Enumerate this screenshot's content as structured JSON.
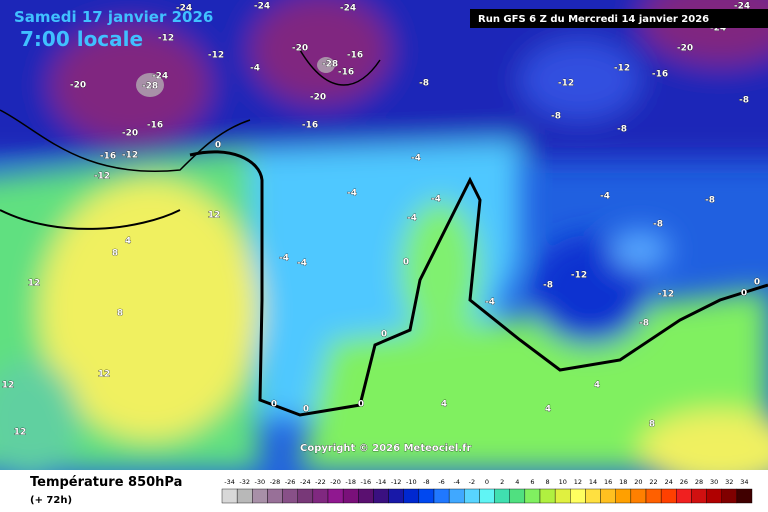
{
  "header": {
    "date": "Samedi 17 janvier 2026",
    "time": "7:00 locale",
    "run": "Run GFS 6 Z du Mercredi 14 janvier 2026"
  },
  "copyright": "Copyright © 2026 Meteociel.fr",
  "footer": {
    "title": "Température 850hPa",
    "lead": "(+ 72h)"
  },
  "scale": {
    "ticks": [
      -34,
      -32,
      -30,
      -28,
      -26,
      -24,
      -22,
      -20,
      -18,
      -16,
      -14,
      -12,
      -10,
      -8,
      -6,
      -4,
      -2,
      0,
      2,
      4,
      6,
      8,
      10,
      12,
      14,
      16,
      18,
      20,
      22,
      24,
      26,
      28,
      30,
      32,
      34
    ],
    "colors": [
      "#d8d8d8",
      "#b8b8b8",
      "#a890a8",
      "#987098",
      "#885088",
      "#783878",
      "#802880",
      "#901890",
      "#7a107a",
      "#5a1070",
      "#3a1080",
      "#1818a8",
      "#0028d0",
      "#0048f0",
      "#2078ff",
      "#40a8ff",
      "#58d4ff",
      "#60f4f4",
      "#40e0b0",
      "#50e080",
      "#80f060",
      "#b0f040",
      "#e0f040",
      "#ffff60",
      "#ffe040",
      "#ffc020",
      "#ffa000",
      "#ff8000",
      "#ff6000",
      "#ff4000",
      "#f02020",
      "#d01010",
      "#b00000",
      "#800000",
      "#400000"
    ]
  },
  "contour_labels": [
    -24,
    -24,
    -24,
    -24,
    -12,
    -20,
    -16,
    -28,
    -16,
    -24,
    -20,
    -28,
    -16,
    -20,
    -16,
    -12,
    -12,
    -12,
    -4,
    -20,
    -16,
    -8,
    -12,
    -12,
    -16,
    -20,
    -24,
    -8,
    -8,
    -8,
    -4,
    -4,
    -4,
    -4,
    0,
    0,
    0,
    0,
    0,
    0,
    4,
    8,
    12,
    12,
    8,
    12,
    12,
    12,
    4,
    4,
    4,
    8,
    -12,
    -8,
    -8,
    0,
    0,
    -4,
    -8,
    -8,
    -12,
    -4,
    -4,
    -4
  ]
}
